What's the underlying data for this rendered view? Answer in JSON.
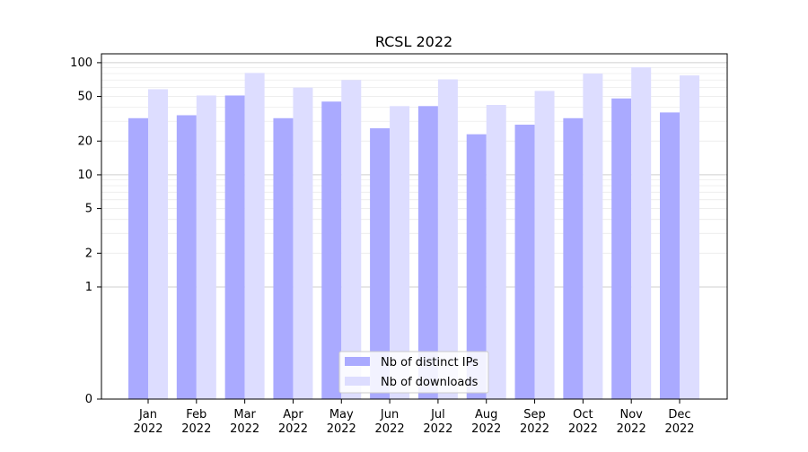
{
  "chart_data": {
    "type": "bar",
    "title": "RCSL 2022",
    "xlabel": "",
    "ylabel": "",
    "y_scale": "symlog",
    "y_linthresh": 1,
    "ylim": [
      0,
      120
    ],
    "y_ticks": [
      0,
      1,
      2,
      5,
      10,
      20,
      50,
      100
    ],
    "categories": [
      [
        "Jan",
        "2022"
      ],
      [
        "Feb",
        "2022"
      ],
      [
        "Mar",
        "2022"
      ],
      [
        "Apr",
        "2022"
      ],
      [
        "May",
        "2022"
      ],
      [
        "Jun",
        "2022"
      ],
      [
        "Jul",
        "2022"
      ],
      [
        "Aug",
        "2022"
      ],
      [
        "Sep",
        "2022"
      ],
      [
        "Oct",
        "2022"
      ],
      [
        "Nov",
        "2022"
      ],
      [
        "Dec",
        "2022"
      ]
    ],
    "series": [
      {
        "name": "Nb of distinct IPs",
        "color": "#aaaaff",
        "values": [
          32,
          34,
          51,
          32,
          45,
          26,
          41,
          23,
          28,
          32,
          48,
          36
        ]
      },
      {
        "name": "Nb of downloads",
        "color": "#ddddff",
        "values": [
          58,
          51,
          81,
          60,
          70,
          41,
          71,
          42,
          56,
          80,
          91,
          77
        ]
      }
    ],
    "grid": true,
    "legend_position": "bottom-center"
  }
}
